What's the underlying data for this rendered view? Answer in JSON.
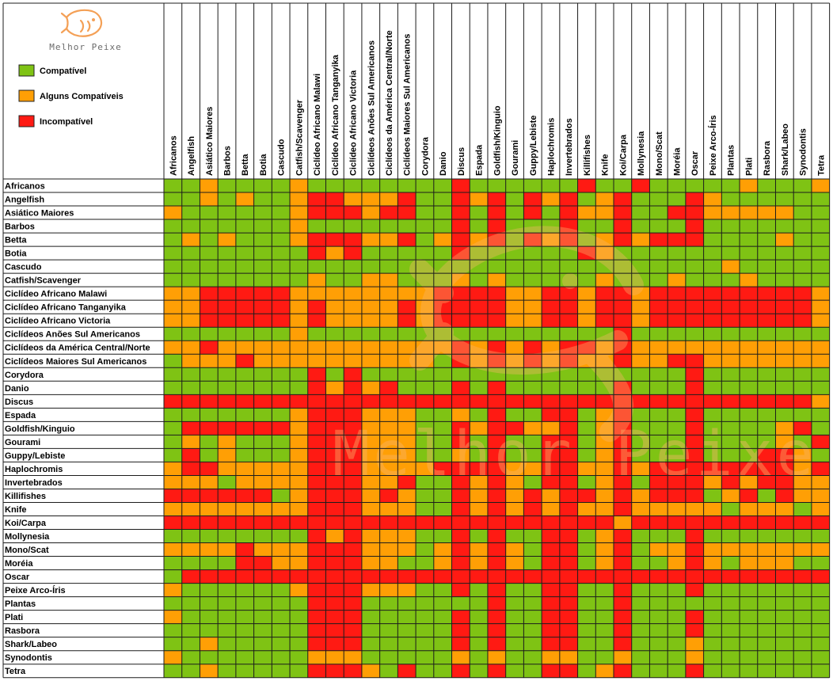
{
  "brand": "Melhor Peixe",
  "legend": [
    {
      "key": "C",
      "label": "Compatível",
      "color": "#7fc314"
    },
    {
      "key": "A",
      "label": "Alguns Compatíveis",
      "color": "#ff9f05"
    },
    {
      "key": "I",
      "label": "Incompatível",
      "color": "#ff1a13"
    }
  ],
  "colors": {
    "C": "#7fc314",
    "A": "#ff9f05",
    "I": "#ff1a13",
    "grid": "#1c1c1c",
    "logo": "#f4a056",
    "watermark": "#f9b56a"
  },
  "chart_data": {
    "type": "heatmap",
    "title": "",
    "categories": [
      "Africanos",
      "Angelfish",
      "Asiático Maiores",
      "Barbos",
      "Betta",
      "Botia",
      "Cascudo",
      "Catfish/Scavenger",
      "Ciclídeo Africano Malawi",
      "Ciclídeo Africano Tanganyika",
      "Ciclídeo Africano Victoria",
      "Ciclídeos Anões Sul Americanos",
      "Ciclídeos da América Central/Norte",
      "Ciclídeos Maiores Sul Americanos",
      "Corydora",
      "Danio",
      "Discus",
      "Espada",
      "Goldfish/Kinguio",
      "Gourami",
      "Guppy/Lebiste",
      "Haplochromis",
      "Invertebrados",
      "Killifishes",
      "Knife",
      "Koi/Carpa",
      "Mollynesia",
      "Mono/Scat",
      "Moréia",
      "Oscar",
      "Peixe Arco-Íris",
      "Plantas",
      "Plati",
      "Rasbora",
      "Shark/Labeo",
      "Synodontis",
      "Tetra"
    ],
    "x": [
      "Africanos",
      "Angelfish",
      "Asiático Maiores",
      "Barbos",
      "Betta",
      "Botia",
      "Cascudo",
      "Catfish/Scavenger",
      "Ciclídeo Africano Malawi",
      "Ciclídeo Africano Tanganyika",
      "Ciclídeo Africano Victoria",
      "Ciclídeos Anões Sul Americanos",
      "Ciclídeos da América Central/Norte",
      "Ciclídeos Maiores Sul Americanos",
      "Corydora",
      "Danio",
      "Discus",
      "Espada",
      "Goldfish/Kinguio",
      "Gourami",
      "Guppy/Lebiste",
      "Haplochromis",
      "Invertebrados",
      "Killifishes",
      "Knife",
      "Koi/Carpa",
      "Mollynesia",
      "Mono/Scat",
      "Moréia",
      "Oscar",
      "Peixe Arco-Íris",
      "Plantas",
      "Plati",
      "Rasbora",
      "Shark/Labeo",
      "Synodontis",
      "Tetra"
    ],
    "y": [
      "Africanos",
      "Angelfish",
      "Asiático Maiores",
      "Barbos",
      "Betta",
      "Botia",
      "Cascudo",
      "Catfish/Scavenger",
      "Ciclídeo Africano Malawi",
      "Ciclídeo Africano Tanganyika",
      "Ciclídeo Africano Victoria",
      "Ciclídeos Anões Sul Americanos",
      "Ciclídeos da América Central/Norte",
      "Ciclídeos Maiores Sul Americanos",
      "Corydora",
      "Danio",
      "Discus",
      "Espada",
      "Goldfish/Kinguio",
      "Gourami",
      "Guppy/Lebiste",
      "Haplochromis",
      "Invertebrados",
      "Killifishes",
      "Knife",
      "Koi/Carpa",
      "Mollynesia",
      "Mono/Scat",
      "Moréia",
      "Oscar",
      "Peixe Arco-Íris",
      "Plantas",
      "Plati",
      "Rasbora",
      "Shark/Labeo",
      "Synodontis",
      "Tetra"
    ],
    "legend": [
      "Compatível",
      "Alguns Compatíveis",
      "Incompatível"
    ],
    "values": [
      "CCACCCCACCCCCCCCICCCCCCICCICCCCCACCCA",
      "CCACACCAIIAAAICCIAICIAICAICCCIACCCCCC",
      "ACCCCCCAIIIAIICCICICICIAAICCIIAAAAACC",
      "CCCCCCCACCCCCCCCICICCCICCICCCICCCCCCC",
      "CACACCCAIIIAAICAIAICIAICAIAIIICCCCACC",
      "CCCCCCCCIAICCCCCICCCCCCIACCCCCCCCCCCC",
      "CCCCCCCCCCCCCCCCCCCCCCCCCCCCCCCACCCCC",
      "CCCCCCCCACCAACCCACACCCCCACCCACCCACCCC",
      "AAIIIIIAAAAAAAAIIIIAAIIAIIAIIIIIIIIIA",
      "AAIIIIIAIAAAAIAIIIIAAIIAIIAIIIIIIIIIA",
      "AAIIIIIAIAAAAIAIIIIAAIIAIIAIIIIIIIIIA",
      "CCCCCCCACCCCCCCCCCCCCCCCCICCCCCCCCCCC",
      "AAIAAAAAAAAAAAAAIAIAIAIIAIAAAAAAAAAAA",
      "CAAAIAAAAAAAAAACIAIAIAIAAIAAIIAAAAAAA",
      "CCCCCCCCICICCCCCCCCCCCCCCCCCCICCCCCCC",
      "CCCCCCCCIAIAICCCICICCCCCCICCCICCCCCCC",
      "IIIIIIIIIIIIIIIIIIIIIIIIIIIIIIIIIIIIA",
      "CCCCCCCAIIIAAACCACICCIICAICCCICCCCCCC",
      "CIIIIIIAIIIAAACCIAIIAAICAICCCICCCCAIC",
      "CACACCCAIIIAAACCICICCIICAICCCICCCCACI",
      "CICACCCAIIIAAACCACICCIICAICCCICCCIIAC",
      "AIIAAAAAIIIAAAAIIIIAAIIAAIAIIIIIIIIAI",
      "AAACAAAAIIIAAICCIAIACIICAICIIIAIAIIAA",
      "IIIIIICAIIIAIACCIAIAIAIIAIAIIICAICIAA",
      "AAAAAAAAIIIAAACCIAIAIAIAAIAAAAACAAACA",
      "IIIIIIIIIIIIIIIIIIIIIIIIIAIIIIIIIIIII",
      "CCCCCCCCIAIAAACCICICCIICAICCCICCCCCCC",
      "AAAAIAAAIIIAAACAIAIACIICAICAAIAAAAAAA",
      "CCCCIIAAIIIAACCAIAIACIICAICCAIACAAACC",
      "CIIIIIIIIIIIIIIIIIIIIIIIIIIIIIIIIIIII",
      "ACCCCCCAIIIAAACCICICCIICCICCCICCCCCCC",
      "CCCCCCCCIIICCCCCCCICCIICCICCCCCCCCCCC",
      "ACCCCCCCIIICCCCCICICCIICCICCCICCCCCCC",
      "CCCCCCCCIIICCCCCICICCIICCICCCICCCCCCC",
      "CCACCCCCIIICCCCCICICCIICCICCCACCCCCCC",
      "ACCCCCCCAAACCCCCACACCAACCACCCACCCCCCC",
      "CCACCCCCIIIACICCICICCIICAICCCICCCCCCC"
    ]
  }
}
